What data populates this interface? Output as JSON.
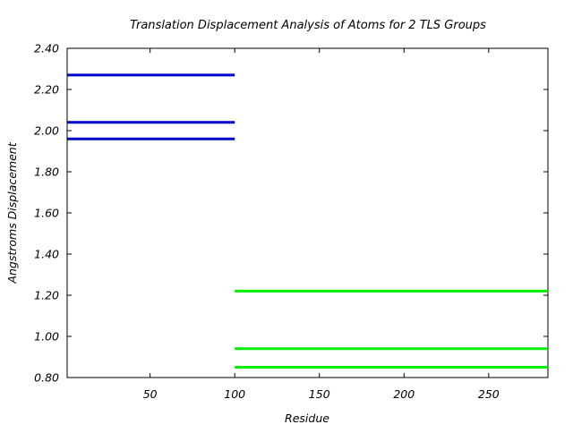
{
  "chart_data": {
    "type": "line",
    "title": "Translation Displacement Analysis of Atoms for 2 TLS Groups",
    "xlabel": "Residue",
    "ylabel": "Angstroms Displacement",
    "xlim": [
      1,
      285
    ],
    "ylim": [
      0.8,
      2.4
    ],
    "xticks": [
      50,
      100,
      150,
      200,
      250
    ],
    "yticks": [
      0.8,
      1.0,
      1.2,
      1.4,
      1.6,
      1.8,
      2.0,
      2.2,
      2.4
    ],
    "ytick_labels": [
      "0.80",
      "1.00",
      "1.20",
      "1.40",
      "1.60",
      "1.80",
      "2.00",
      "2.20",
      "2.40"
    ],
    "grid": false,
    "legend": "none",
    "series": [
      {
        "group": 1,
        "color": "#0000cc",
        "x": [
          1,
          100
        ],
        "y": 2.27
      },
      {
        "group": 1,
        "color": "#0000cc",
        "x": [
          1,
          100
        ],
        "y": 2.04
      },
      {
        "group": 1,
        "color": "#0000cc",
        "x": [
          1,
          100
        ],
        "y": 1.96
      },
      {
        "group": 2,
        "color": "#00ee00",
        "x": [
          100,
          285
        ],
        "y": 1.22
      },
      {
        "group": 2,
        "color": "#00ee00",
        "x": [
          100,
          285
        ],
        "y": 0.94
      },
      {
        "group": 2,
        "color": "#00ee00",
        "x": [
          100,
          285
        ],
        "y": 0.85
      }
    ]
  }
}
